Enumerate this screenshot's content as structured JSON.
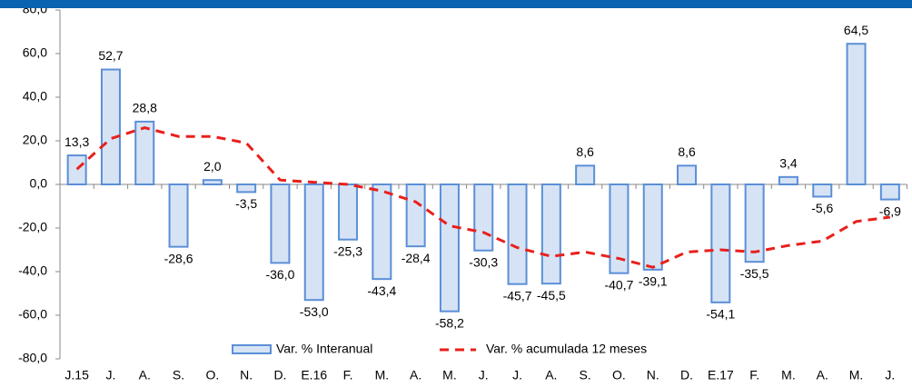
{
  "chart_data": {
    "type": "bar",
    "categories": [
      "J.15",
      "J.",
      "A.",
      "S.",
      "O.",
      "N.",
      "D.",
      "E.16",
      "F.",
      "M.",
      "A.",
      "M.",
      "J.",
      "J.",
      "A.",
      "S.",
      "O.",
      "N.",
      "D.",
      "E.17",
      "F.",
      "M.",
      "A.",
      "M.",
      "J."
    ],
    "series": [
      {
        "name": "Var. % Interanual",
        "type": "bar",
        "color": "#d6e3f5",
        "stroke": "#5b8fd6",
        "values": [
          13.3,
          52.7,
          28.8,
          -28.6,
          2.0,
          -3.5,
          -36.0,
          -53.0,
          -25.3,
          -43.4,
          -28.4,
          -58.2,
          -30.3,
          -45.7,
          -45.5,
          8.6,
          -40.7,
          -39.1,
          8.6,
          -54.1,
          -35.5,
          3.4,
          -5.6,
          64.5,
          -6.9
        ],
        "value_labels": [
          "13,3",
          "52,7",
          "28,8",
          "-28,6",
          "2,0",
          "-3,5",
          "-36,0",
          "-53,0",
          "-25,3",
          "-43,4",
          "-28,4",
          "-58,2",
          "-30,3",
          "-45,7",
          "-45,5",
          "8,6",
          "-40,7",
          "-39,1",
          "8,6",
          "-54,1",
          "-35,5",
          "3,4",
          "-5,6",
          "64,5",
          "-6,9"
        ]
      },
      {
        "name": "Var. % acumulada 12 meses",
        "type": "line",
        "color": "#e8201c",
        "values": [
          7,
          21,
          26,
          22,
          22,
          19,
          2,
          1,
          0,
          -3,
          -8,
          -19,
          -22,
          -29,
          -33,
          -31,
          -34,
          -38,
          -31,
          -30,
          -31,
          -28,
          -26,
          -17,
          -15
        ]
      }
    ],
    "ylim": [
      -80,
      80
    ],
    "yticks": [
      {
        "value": -80,
        "label": "-80,0"
      },
      {
        "value": -60,
        "label": "-60,0"
      },
      {
        "value": -40,
        "label": "-40,0"
      },
      {
        "value": -20,
        "label": "-20,0"
      },
      {
        "value": 0,
        "label": "0,0"
      },
      {
        "value": 20,
        "label": "20,0"
      },
      {
        "value": 40,
        "label": "40,0"
      },
      {
        "value": 60,
        "label": "60,0"
      },
      {
        "value": 80,
        "label": "80,0"
      }
    ],
    "legend": "bottom-center"
  }
}
